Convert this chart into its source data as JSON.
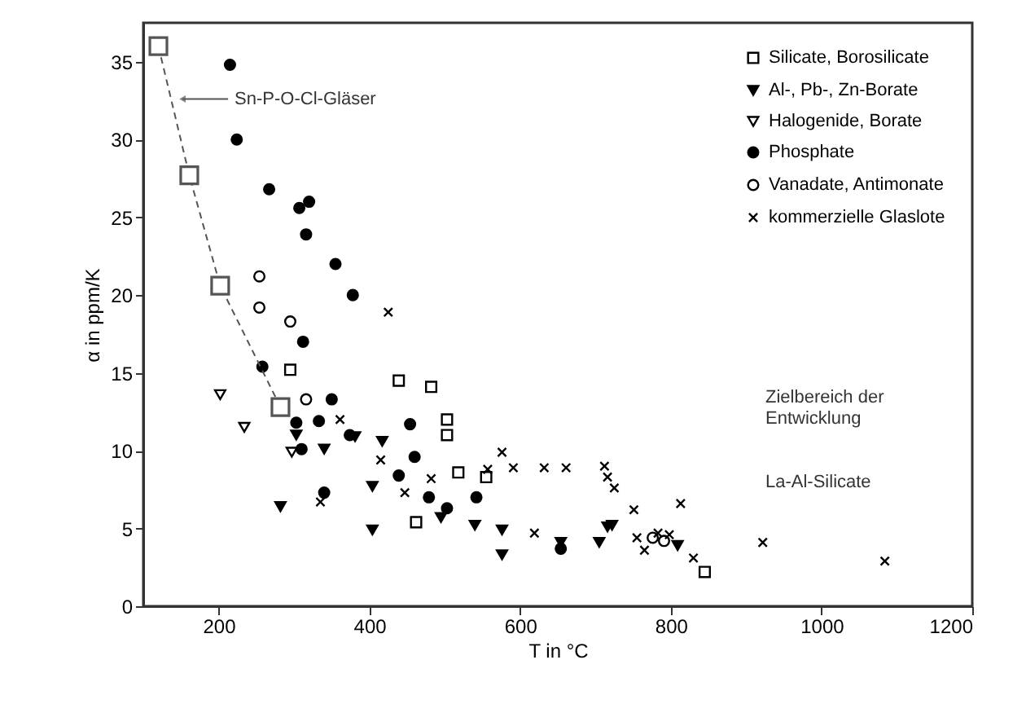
{
  "chart_data": {
    "type": "scatter",
    "xlabel": "T in °C",
    "ylabel": "α in ppm/K",
    "xlim": [
      100,
      1200
    ],
    "xticks": [
      200,
      400,
      600,
      800,
      1000,
      1200
    ],
    "ylim": [
      0,
      37.5
    ],
    "yticks": [
      0,
      5,
      10,
      15,
      20,
      25,
      30,
      35
    ],
    "grid": false,
    "legend": "top right",
    "annotations": [
      {
        "text": "Sn-P-O-Cl-Gläser",
        "x": 152,
        "y": 32.6
      },
      "Zielbereich der\nEntwicklung",
      "La-Al-Silicate"
    ],
    "series": [
      {
        "name": "Silicate, Borosilicate",
        "color": "#000000",
        "marker": "square",
        "x": [
          295,
          439,
          482,
          503,
          503,
          462,
          518,
          555,
          845
        ],
        "values": [
          15.2,
          14.5,
          14.1,
          12.0,
          11.0,
          5.4,
          8.6,
          8.3,
          2.2
        ]
      },
      {
        "name": "Al-, Pb-, Zn-Borate",
        "color": "#000000",
        "marker": "triangle",
        "x": [
          282,
          340,
          381,
          417,
          404,
          404,
          495,
          540,
          576,
          576,
          303,
          654,
          705,
          716,
          722,
          809
        ],
        "values": [
          6.4,
          10.1,
          10.9,
          10.6,
          7.7,
          4.9,
          5.7,
          5.2,
          4.9,
          3.3,
          11.0,
          4.1,
          4.1,
          5.1,
          5.2,
          3.9
        ]
      },
      {
        "name": "Halogenide, Borate",
        "color": "#000000",
        "marker": "triangle",
        "x": [
          202,
          234,
          297
        ],
        "values": [
          13.6,
          11.5,
          9.9
        ]
      },
      {
        "name": "Phosphate",
        "color": "#000000",
        "marker": "circle",
        "x": [
          215,
          224,
          267,
          307,
          320,
          316,
          355,
          378,
          312,
          258,
          350,
          333,
          303,
          310,
          454,
          460,
          439,
          479,
          340,
          542,
          503,
          654,
          374
        ],
        "values": [
          34.8,
          30.0,
          26.8,
          25.6,
          26.0,
          23.9,
          22.0,
          20.0,
          17.0,
          15.4,
          13.3,
          11.9,
          11.8,
          10.1,
          11.7,
          9.6,
          8.4,
          7.0,
          7.3,
          7.0,
          6.3,
          3.7,
          11.0
        ]
      },
      {
        "name": "Vanadate, Antimonate",
        "color": "#000000",
        "marker": "circle",
        "x": [
          254,
          254,
          295,
          316,
          776,
          791
        ],
        "values": [
          21.2,
          19.2,
          18.3,
          13.3,
          4.4,
          4.2
        ]
      },
      {
        "name": "kommerzielle Glaslote",
        "color": "#000000",
        "marker": "cross",
        "x": [
          425,
          361,
          415,
          576,
          591,
          632,
          661,
          557,
          619,
          335,
          447,
          482,
          712,
          716,
          725,
          751,
          813,
          922,
          1084,
          755,
          765,
          783,
          798,
          830
        ],
        "values": [
          18.9,
          12.0,
          9.4,
          9.9,
          8.9,
          8.9,
          8.9,
          8.8,
          4.7,
          6.7,
          7.3,
          8.2,
          9.0,
          8.3,
          7.6,
          6.2,
          6.6,
          4.1,
          2.9,
          4.4,
          3.6,
          4.7,
          4.6,
          3.1
        ]
      },
      {
        "type": "line",
        "color": "#555555",
        "marker": "square",
        "line_style": "dashed",
        "x": [
          120,
          161,
          202,
          282
        ],
        "values": [
          36.0,
          27.7,
          20.6,
          12.8
        ]
      }
    ]
  }
}
